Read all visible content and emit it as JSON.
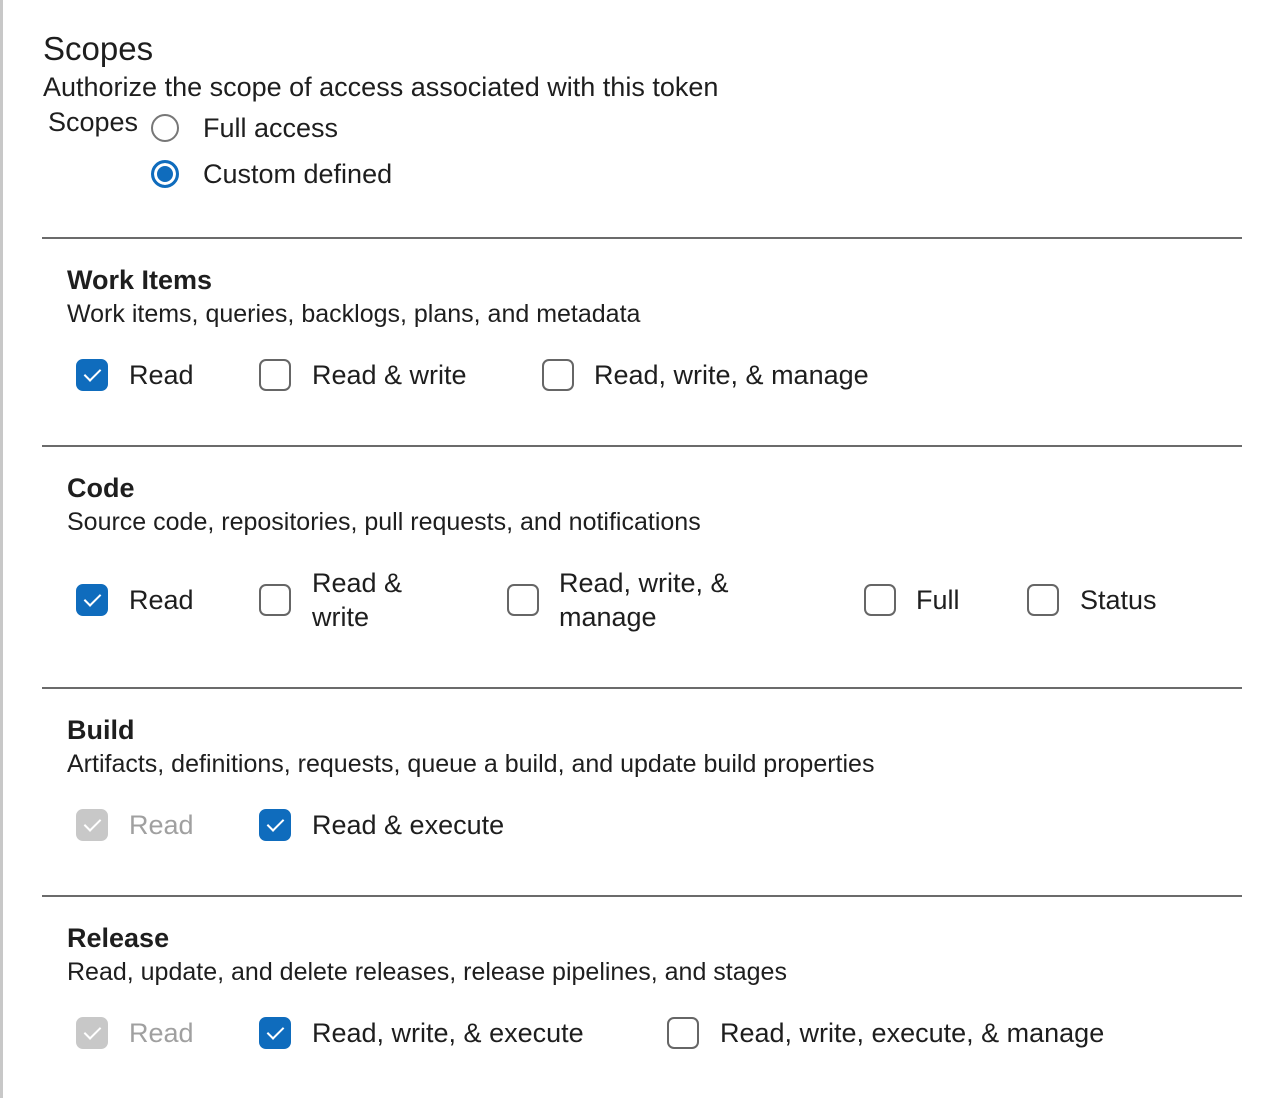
{
  "header": {
    "title": "Scopes",
    "subtitle": "Authorize the scope of access associated with this token",
    "scopes_label": "Scopes",
    "options": [
      {
        "label": "Full access",
        "selected": false
      },
      {
        "label": "Custom defined",
        "selected": true
      }
    ]
  },
  "accent_color": "#0f6cbd",
  "sections": [
    {
      "title": "Work Items",
      "description": "Work items, queries, backlogs, plans, and metadata",
      "options": [
        {
          "label": "Read",
          "checked": true,
          "disabled": false
        },
        {
          "label": "Read & write",
          "checked": false,
          "disabled": false
        },
        {
          "label": "Read, write, & manage",
          "checked": false,
          "disabled": false
        }
      ]
    },
    {
      "title": "Code",
      "description": "Source code, repositories, pull requests, and notifications",
      "options": [
        {
          "label": "Read",
          "checked": true,
          "disabled": false
        },
        {
          "label": "Read & write",
          "checked": false,
          "disabled": false
        },
        {
          "label": "Read, write, & manage",
          "checked": false,
          "disabled": false
        },
        {
          "label": "Full",
          "checked": false,
          "disabled": false
        },
        {
          "label": "Status",
          "checked": false,
          "disabled": false
        }
      ]
    },
    {
      "title": "Build",
      "description": "Artifacts, definitions, requests, queue a build, and update build properties",
      "options": [
        {
          "label": "Read",
          "checked": true,
          "disabled": true
        },
        {
          "label": "Read & execute",
          "checked": true,
          "disabled": false
        }
      ]
    },
    {
      "title": "Release",
      "description": "Read, update, and delete releases, release pipelines, and stages",
      "options": [
        {
          "label": "Read",
          "checked": true,
          "disabled": true
        },
        {
          "label": "Read, write, & execute",
          "checked": true,
          "disabled": false
        },
        {
          "label": "Read, write, execute, & manage",
          "checked": false,
          "disabled": false
        }
      ]
    }
  ]
}
